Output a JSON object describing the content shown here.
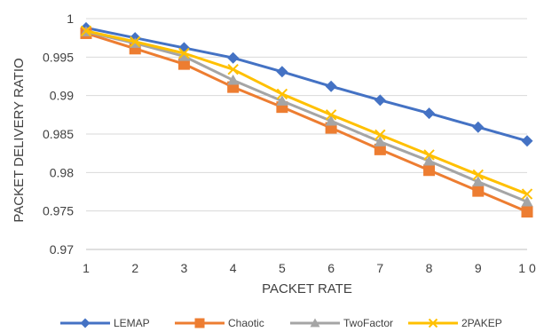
{
  "chart_data": {
    "type": "line",
    "x": [
      1,
      2,
      3,
      4,
      5,
      6,
      7,
      8,
      9,
      10
    ],
    "x_tick_labels": [
      "1",
      "2",
      "3",
      "4",
      "5",
      "6",
      "7",
      "8",
      "9",
      "1 0"
    ],
    "xlabel": "PACKET RATE",
    "ylabel": "PACKET DELIVERY RATIO",
    "ylim": [
      0.97,
      1
    ],
    "y_tick_labels": [
      "0.97",
      "0.975",
      "0.98",
      "0.985",
      "0.99",
      "0.995",
      "1"
    ],
    "y_ticks": [
      0.97,
      0.975,
      0.98,
      0.985,
      0.99,
      0.995,
      1
    ],
    "grid": "horizontal",
    "legend_position": "bottom",
    "series": [
      {
        "name": "LEMAP",
        "color": "#4472C4",
        "marker": "diamond",
        "values": [
          0.9988,
          0.9975,
          0.9962,
          0.9949,
          0.9931,
          0.9912,
          0.9894,
          0.9877,
          0.9859,
          0.9841
        ]
      },
      {
        "name": "Chaotic",
        "color": "#ED7D31",
        "marker": "square",
        "values": [
          0.9981,
          0.9961,
          0.9941,
          0.9911,
          0.9885,
          0.9858,
          0.983,
          0.9803,
          0.9776,
          0.9749
        ]
      },
      {
        "name": "TwoFactor",
        "color": "#A5A5A5",
        "marker": "triangle",
        "values": [
          0.9983,
          0.9968,
          0.9951,
          0.992,
          0.9893,
          0.9867,
          0.984,
          0.9815,
          0.9788,
          0.9762
        ]
      },
      {
        "name": "2PAKEP",
        "color": "#FFC000",
        "marker": "x",
        "values": [
          0.9984,
          0.997,
          0.9955,
          0.9934,
          0.9902,
          0.9875,
          0.9849,
          0.9823,
          0.9797,
          0.9772
        ]
      }
    ]
  }
}
